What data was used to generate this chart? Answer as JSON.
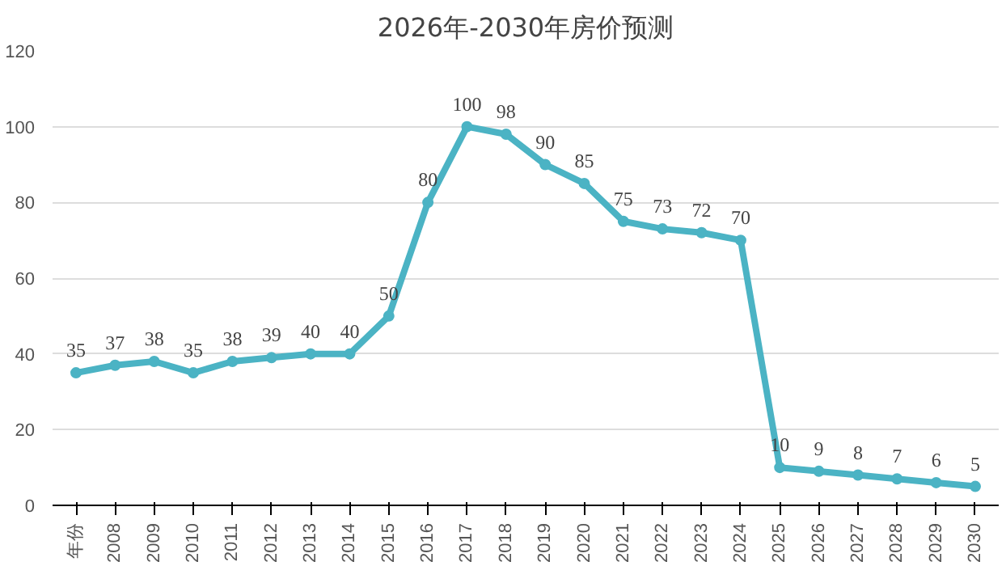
{
  "chart_data": {
    "type": "line",
    "title": "2026年-2030年房价预测",
    "categories": [
      "年份",
      "2008",
      "2009",
      "2010",
      "2011",
      "2012",
      "2013",
      "2014",
      "2015",
      "2016",
      "2017",
      "2018",
      "2019",
      "2020",
      "2021",
      "2022",
      "2023",
      "2024",
      "2025",
      "2026",
      "2027",
      "2028",
      "2029",
      "2030"
    ],
    "series": [
      {
        "color": "#4bb3c4",
        "values": [
          35,
          37,
          38,
          35,
          38,
          39,
          40,
          40,
          50,
          80,
          100,
          98,
          90,
          85,
          75,
          73,
          72,
          70,
          10,
          9,
          8,
          7,
          6,
          5
        ]
      }
    ],
    "ylim": [
      0,
      120
    ],
    "yticks": [
      0,
      20,
      40,
      60,
      80,
      100,
      120
    ],
    "grid": "y",
    "data_labels": true,
    "marker": "circle",
    "line_style": "solid"
  }
}
